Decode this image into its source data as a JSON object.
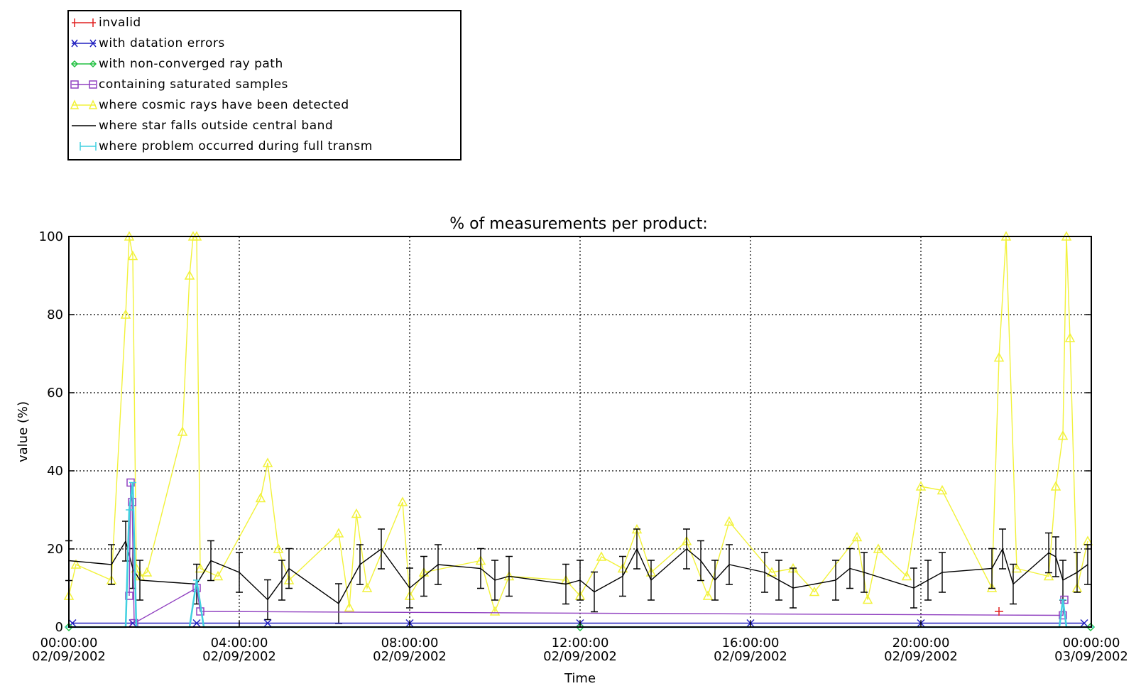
{
  "chart_data": {
    "type": "line",
    "title": "% of measurements per product:",
    "xlabel": "Time",
    "ylabel": "value (%)",
    "ylim": [
      0,
      100
    ],
    "xlim": [
      "02/09/2002 00:00:00",
      "03/09/2002 00:00:00"
    ],
    "grid": true,
    "legend_position": "top-left, above plot",
    "x_ticks": [
      {
        "time": "00:00:00",
        "date": "02/09/2002"
      },
      {
        "time": "04:00:00",
        "date": "02/09/2002"
      },
      {
        "time": "08:00:00",
        "date": "02/09/2002"
      },
      {
        "time": "12:00:00",
        "date": "02/09/2002"
      },
      {
        "time": "16:00:00",
        "date": "02/09/2002"
      },
      {
        "time": "20:00:00",
        "date": "02/09/2002"
      },
      {
        "time": "00:00:00",
        "date": "03/09/2002"
      }
    ],
    "y_ticks": [
      "0",
      "20",
      "40",
      "60",
      "80",
      "100"
    ],
    "series": [
      {
        "name": "invalid",
        "color": "#e02020",
        "marker": "plus",
        "x": [
          "02/09/2002 21:50"
        ],
        "values": [
          4
        ]
      },
      {
        "name": "with datation errors",
        "color": "#2020c0",
        "marker": "x",
        "x": [
          "02/09/2002 00:05",
          "02/09/2002 01:30",
          "02/09/2002 03:00",
          "02/09/2002 04:40",
          "02/09/2002 08:00",
          "02/09/2002 12:00",
          "02/09/2002 16:00",
          "02/09/2002 20:00",
          "02/09/2002 23:50"
        ],
        "values": [
          1,
          1,
          1,
          1,
          1,
          1,
          1,
          1,
          1
        ]
      },
      {
        "name": "with non-converged ray path",
        "color": "#20c040",
        "marker": "diamond",
        "x": [
          "02/09/2002 00:00",
          "02/09/2002 12:00",
          "02/09/2002 23:59"
        ],
        "values": [
          0,
          0,
          0
        ]
      },
      {
        "name": "containing saturated samples",
        "color": "#9040c0",
        "marker": "square",
        "x": [
          "02/09/2002 01:25",
          "02/09/2002 01:27",
          "02/09/2002 01:29",
          "02/09/2002 01:32",
          "02/09/2002 03:00",
          "02/09/2002 03:05",
          "02/09/2002 23:20",
          "02/09/2002 23:22"
        ],
        "values": [
          8,
          37,
          32,
          1,
          10,
          4,
          3,
          7
        ]
      },
      {
        "name": "where cosmic rays have been detected",
        "color": "#f2f23a",
        "marker": "triangle",
        "x": [
          "02/09/2002 00:00",
          "02/09/2002 00:10",
          "02/09/2002 01:00",
          "02/09/2002 01:20",
          "02/09/2002 01:25",
          "02/09/2002 01:30",
          "02/09/2002 01:35",
          "02/09/2002 01:40",
          "02/09/2002 01:50",
          "02/09/2002 02:40",
          "02/09/2002 02:50",
          "02/09/2002 02:55",
          "02/09/2002 03:00",
          "02/09/2002 03:05",
          "02/09/2002 03:30",
          "02/09/2002 04:30",
          "02/09/2002 04:40",
          "02/09/2002 04:55",
          "02/09/2002 05:10",
          "02/09/2002 06:20",
          "02/09/2002 06:35",
          "02/09/2002 06:45",
          "02/09/2002 07:00",
          "02/09/2002 07:50",
          "02/09/2002 08:00",
          "02/09/2002 08:20",
          "02/09/2002 09:40",
          "02/09/2002 10:00",
          "02/09/2002 10:20",
          "02/09/2002 11:40",
          "02/09/2002 12:00",
          "02/09/2002 12:30",
          "02/09/2002 13:00",
          "02/09/2002 13:20",
          "02/09/2002 13:40",
          "02/09/2002 14:30",
          "02/09/2002 15:00",
          "02/09/2002 15:30",
          "02/09/2002 16:30",
          "02/09/2002 17:00",
          "02/09/2002 17:30",
          "02/09/2002 18:30",
          "02/09/2002 18:45",
          "02/09/2002 19:00",
          "02/09/2002 19:40",
          "02/09/2002 20:00",
          "02/09/2002 20:30",
          "02/09/2002 21:40",
          "02/09/2002 21:50",
          "02/09/2002 22:00",
          "02/09/2002 22:15",
          "02/09/2002 23:00",
          "02/09/2002 23:10",
          "02/09/2002 23:20",
          "02/09/2002 23:25",
          "02/09/2002 23:30",
          "02/09/2002 23:40",
          "02/09/2002 23:55"
        ],
        "values": [
          8,
          16,
          12,
          80,
          100,
          95,
          15,
          13,
          14,
          50,
          90,
          100,
          100,
          15,
          13,
          33,
          42,
          20,
          12,
          24,
          5,
          29,
          10,
          32,
          8,
          14,
          17,
          4,
          13,
          12,
          8,
          18,
          15,
          25,
          14,
          22,
          8,
          27,
          14,
          15,
          9,
          23,
          7,
          20,
          13,
          36,
          35,
          10,
          69,
          100,
          15,
          13,
          36,
          49,
          100,
          74,
          10,
          22
        ]
      },
      {
        "name": "where star falls outside central band",
        "color": "#000000",
        "marker": "errorbar",
        "x": [
          "02/09/2002 00:00",
          "02/09/2002 01:00",
          "02/09/2002 01:20",
          "02/09/2002 01:30",
          "02/09/2002 01:40",
          "02/09/2002 03:00",
          "02/09/2002 03:20",
          "02/09/2002 04:00",
          "02/09/2002 04:40",
          "02/09/2002 05:00",
          "02/09/2002 05:10",
          "02/09/2002 06:20",
          "02/09/2002 06:50",
          "02/09/2002 07:20",
          "02/09/2002 08:00",
          "02/09/2002 08:20",
          "02/09/2002 08:40",
          "02/09/2002 09:40",
          "02/09/2002 10:00",
          "02/09/2002 10:20",
          "02/09/2002 11:40",
          "02/09/2002 12:00",
          "02/09/2002 12:20",
          "02/09/2002 13:00",
          "02/09/2002 13:20",
          "02/09/2002 13:40",
          "02/09/2002 14:30",
          "02/09/2002 14:50",
          "02/09/2002 15:10",
          "02/09/2002 15:30",
          "02/09/2002 16:20",
          "02/09/2002 16:40",
          "02/09/2002 17:00",
          "02/09/2002 18:00",
          "02/09/2002 18:20",
          "02/09/2002 18:40",
          "02/09/2002 19:50",
          "02/09/2002 20:10",
          "02/09/2002 20:30",
          "02/09/2002 21:40",
          "02/09/2002 21:55",
          "02/09/2002 22:10",
          "02/09/2002 23:00",
          "02/09/2002 23:10",
          "02/09/2002 23:20",
          "02/09/2002 23:40",
          "02/09/2002 23:55"
        ],
        "values": [
          17,
          16,
          22,
          15,
          12,
          11,
          17,
          14,
          7,
          12,
          15,
          6,
          16,
          20,
          10,
          13,
          16,
          15,
          12,
          13,
          11,
          12,
          9,
          13,
          20,
          12,
          20,
          17,
          12,
          16,
          14,
          12,
          10,
          12,
          15,
          14,
          10,
          12,
          14,
          15,
          20,
          11,
          19,
          18,
          12,
          14,
          16
        ]
      },
      {
        "name": "where problem occurred during full transm",
        "color": "#40d0e0",
        "marker": "hbar",
        "x": [
          "02/09/2002 00:00",
          "02/09/2002 01:20",
          "02/09/2002 01:25",
          "02/09/2002 01:30",
          "02/09/2002 01:35",
          "02/09/2002 02:50",
          "02/09/2002 03:00",
          "02/09/2002 03:10",
          "02/09/2002 12:00",
          "02/09/2002 23:15",
          "02/09/2002 23:20",
          "02/09/2002 23:25",
          "02/09/2002 23:59"
        ],
        "values": [
          0,
          0,
          30,
          37,
          0,
          0,
          12,
          0,
          0,
          0,
          7,
          0,
          0
        ]
      }
    ]
  }
}
